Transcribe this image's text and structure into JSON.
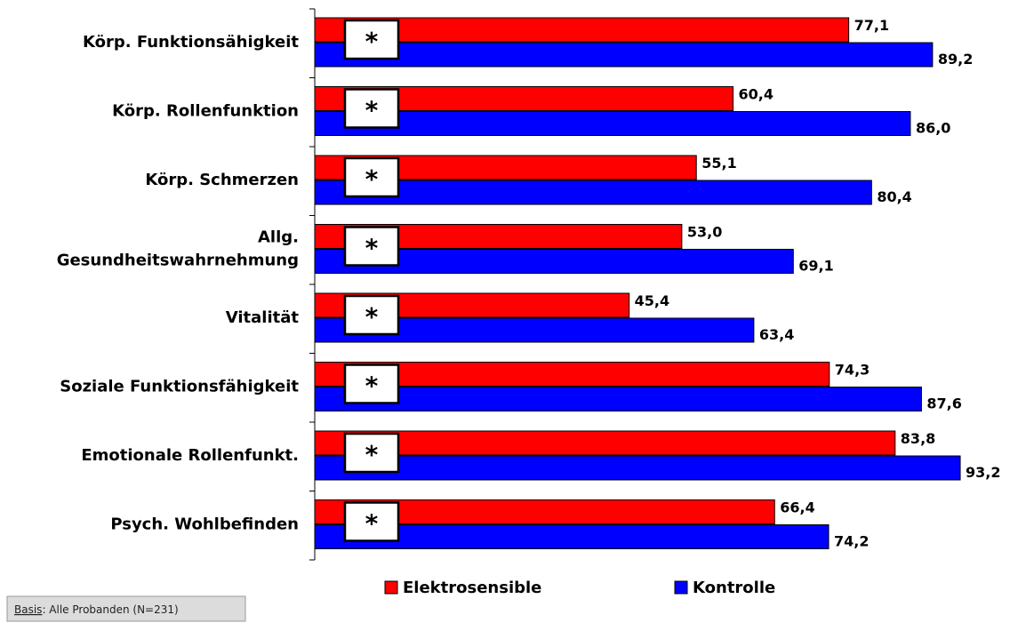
{
  "chart_data": {
    "type": "bar",
    "orientation": "horizontal",
    "categories": [
      "Körp. Funktionsähigkeit",
      "Körp. Rollenfunktion",
      "Körp. Schmerzen",
      "Allg.\nGesundheitswahrnehmung",
      "Vitalität",
      "Soziale Funktionsfähigkeit",
      "Emotionale Rollenfunkt.",
      "Psych. Wohlbefinden"
    ],
    "markers": [
      "*",
      "*",
      "*",
      "*",
      "*",
      "*",
      "*",
      "*"
    ],
    "series": [
      {
        "name": "Elektrosensible",
        "color": "#ff0000",
        "values": [
          77.1,
          60.4,
          55.1,
          53.0,
          45.4,
          74.3,
          83.8,
          66.4
        ],
        "value_labels": [
          "77,1",
          "60,4",
          "55,1",
          "53,0",
          "45,4",
          "74,3",
          "83,8",
          "66,4"
        ]
      },
      {
        "name": "Kontrolle",
        "color": "#0000ff",
        "values": [
          89.2,
          86.0,
          80.4,
          69.1,
          63.4,
          87.6,
          93.2,
          74.2
        ],
        "value_labels": [
          "89,2",
          "86,0",
          "80,4",
          "69,1",
          "63,4",
          "87,6",
          "93,2",
          "74,2"
        ]
      }
    ],
    "xlim": [
      0,
      100
    ],
    "legend": "bottom",
    "footnote": {
      "label": "Basis",
      "text": ": Alle Probanden (N=231)"
    }
  }
}
